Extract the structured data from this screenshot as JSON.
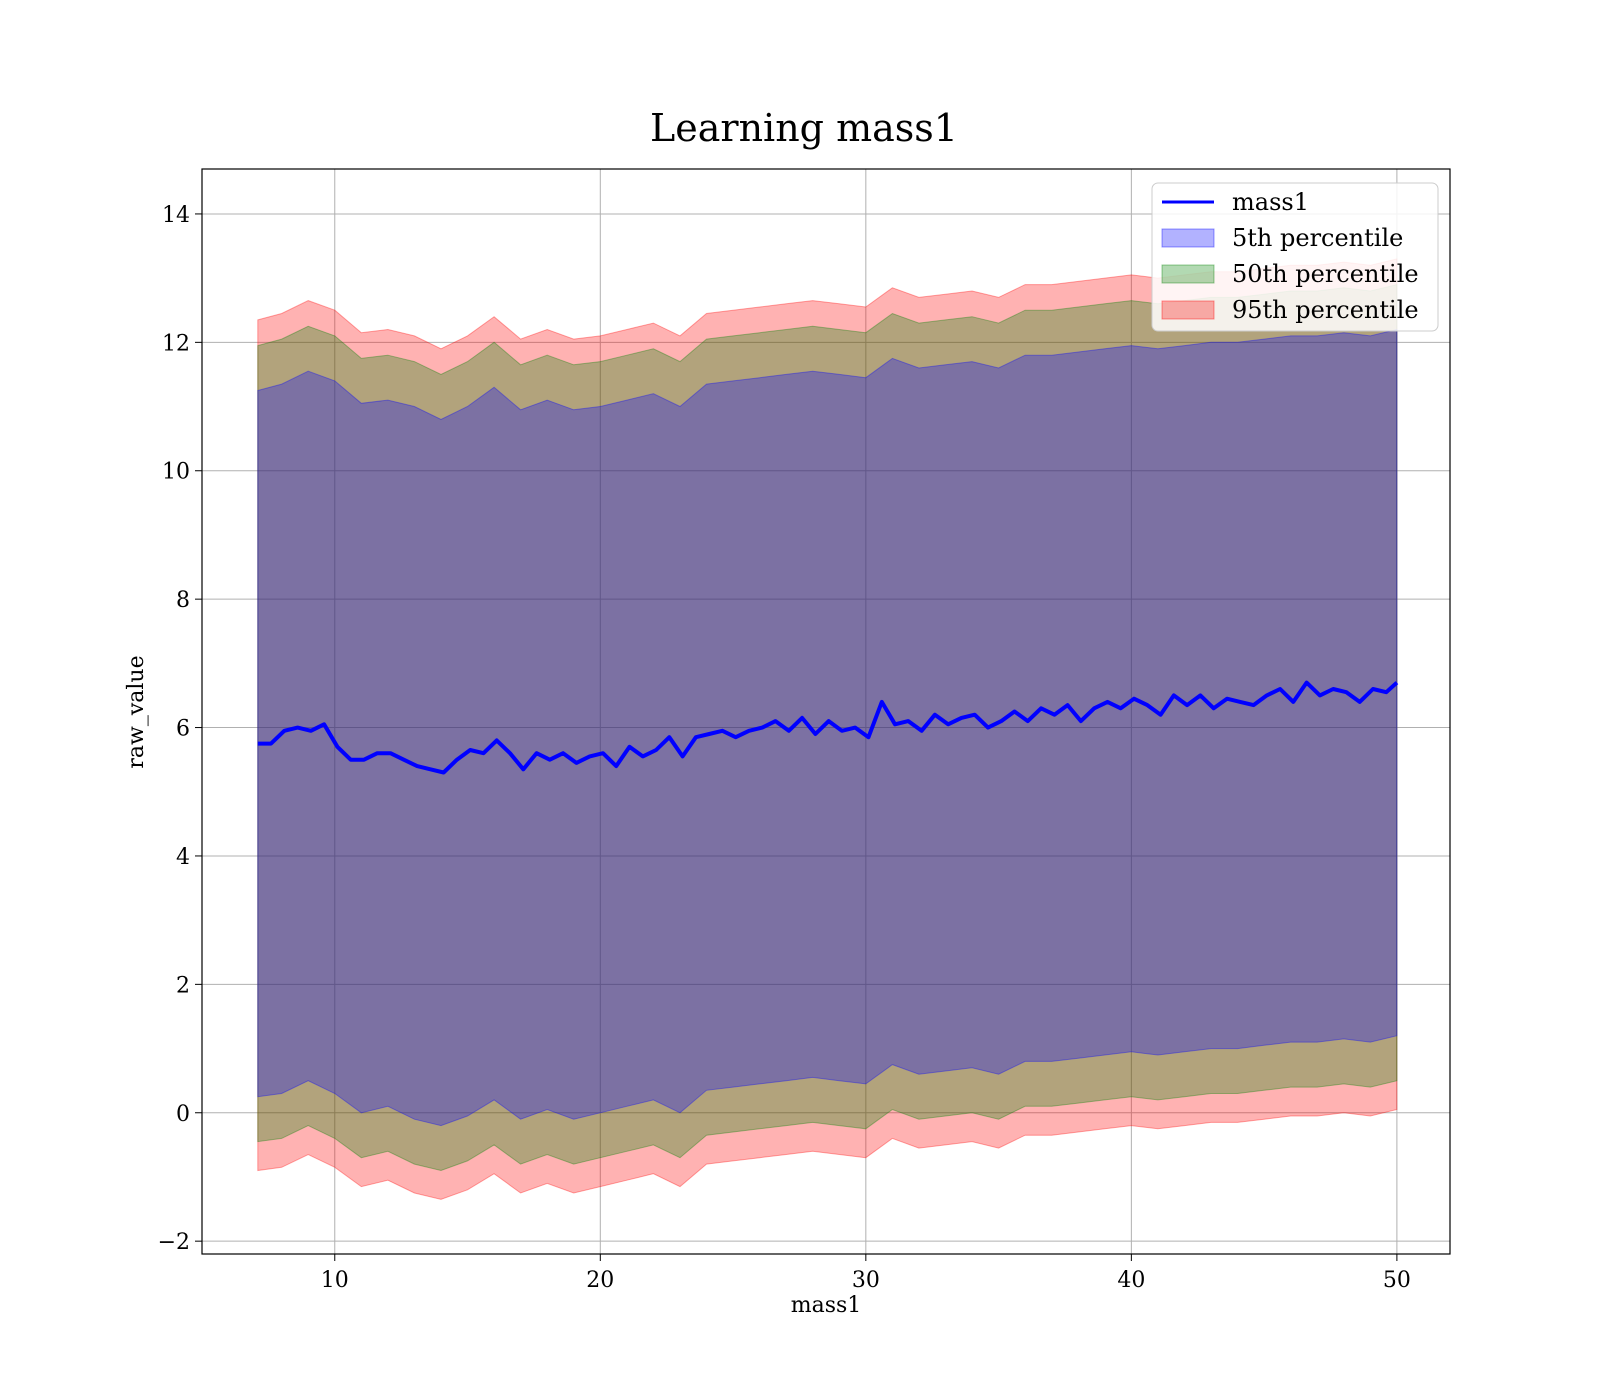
{
  "chart_data": {
    "type": "line",
    "title": "Learning mass1",
    "xlabel": "mass1",
    "ylabel": "raw_value",
    "xlim": [
      5,
      52
    ],
    "ylim": [
      -2.2,
      14.7
    ],
    "xticks": [
      10,
      20,
      30,
      40,
      50
    ],
    "yticks": [
      -2,
      0,
      2,
      4,
      6,
      8,
      10,
      12,
      14
    ],
    "grid": true,
    "legend_position": "top-right",
    "colors": {
      "line": "#0000ff",
      "band_5th": "#0000ff",
      "band_50th": "#008000",
      "band_95th": "#ff0000"
    },
    "legend": [
      {
        "label": "mass1",
        "kind": "line"
      },
      {
        "label": "5th percentile",
        "kind": "band"
      },
      {
        "label": "50th percentile",
        "kind": "band"
      },
      {
        "label": "95th percentile",
        "kind": "band"
      }
    ],
    "series": [
      {
        "name": "mass1",
        "x": [
          7.1,
          7.6,
          8.1,
          8.6,
          9.1,
          9.6,
          10.1,
          10.6,
          11.1,
          11.6,
          12.1,
          12.6,
          13.1,
          13.6,
          14.1,
          14.6,
          15.1,
          15.6,
          16.1,
          16.6,
          17.1,
          17.6,
          18.1,
          18.6,
          19.1,
          19.6,
          20.1,
          20.6,
          21.1,
          21.6,
          22.1,
          22.6,
          23.1,
          23.6,
          24.1,
          24.6,
          25.1,
          25.6,
          26.1,
          26.6,
          27.1,
          27.6,
          28.1,
          28.6,
          29.1,
          29.6,
          30.1,
          30.6,
          31.1,
          31.6,
          32.1,
          32.6,
          33.1,
          33.6,
          34.1,
          34.6,
          35.1,
          35.6,
          36.1,
          36.6,
          37.1,
          37.6,
          38.1,
          38.6,
          39.1,
          39.6,
          40.1,
          40.6,
          41.1,
          41.6,
          42.1,
          42.6,
          43.1,
          43.6,
          44.1,
          44.6,
          45.1,
          45.6,
          46.1,
          46.6,
          47.1,
          47.6,
          48.1,
          48.6,
          49.1,
          49.6,
          50.0
        ],
        "y": [
          5.75,
          5.75,
          5.95,
          6.0,
          5.95,
          6.05,
          5.7,
          5.5,
          5.5,
          5.6,
          5.6,
          5.5,
          5.4,
          5.35,
          5.3,
          5.5,
          5.65,
          5.6,
          5.8,
          5.6,
          5.35,
          5.6,
          5.5,
          5.6,
          5.45,
          5.55,
          5.6,
          5.4,
          5.7,
          5.55,
          5.65,
          5.85,
          5.55,
          5.85,
          5.9,
          5.95,
          5.85,
          5.95,
          6.0,
          6.1,
          5.95,
          6.15,
          5.9,
          6.1,
          5.95,
          6.0,
          5.85,
          6.4,
          6.05,
          6.1,
          5.95,
          6.2,
          6.05,
          6.15,
          6.2,
          6.0,
          6.1,
          6.25,
          6.1,
          6.3,
          6.2,
          6.35,
          6.1,
          6.3,
          6.4,
          6.3,
          6.45,
          6.35,
          6.2,
          6.5,
          6.35,
          6.5,
          6.3,
          6.45,
          6.4,
          6.35,
          6.5,
          6.6,
          6.4,
          6.7,
          6.5,
          6.6,
          6.55,
          6.4,
          6.6,
          6.55,
          6.7
        ]
      },
      {
        "name": "5th percentile",
        "x": [
          7.1,
          8.0,
          9.0,
          10.0,
          11.0,
          12.0,
          13.0,
          14.0,
          15.0,
          16.0,
          17.0,
          18.0,
          19.0,
          20.0,
          21.0,
          22.0,
          23.0,
          24.0,
          25.0,
          26.0,
          27.0,
          28.0,
          29.0,
          30.0,
          31.0,
          32.0,
          33.0,
          34.0,
          35.0,
          36.0,
          37.0,
          38.0,
          39.0,
          40.0,
          41.0,
          42.0,
          43.0,
          44.0,
          45.0,
          46.0,
          47.0,
          48.0,
          49.0,
          50.0
        ],
        "lower": [
          0.25,
          0.3,
          0.5,
          0.3,
          0.0,
          0.1,
          -0.1,
          -0.2,
          -0.05,
          0.2,
          -0.1,
          0.05,
          -0.1,
          0.0,
          0.1,
          0.2,
          0.0,
          0.35,
          0.4,
          0.45,
          0.5,
          0.55,
          0.5,
          0.45,
          0.75,
          0.6,
          0.65,
          0.7,
          0.6,
          0.8,
          0.8,
          0.85,
          0.9,
          0.95,
          0.9,
          0.95,
          1.0,
          1.0,
          1.05,
          1.1,
          1.1,
          1.15,
          1.1,
          1.2
        ],
        "upper": [
          11.25,
          11.35,
          11.55,
          11.4,
          11.05,
          11.1,
          11.0,
          10.8,
          11.0,
          11.3,
          10.95,
          11.1,
          10.95,
          11.0,
          11.1,
          11.2,
          11.0,
          11.35,
          11.4,
          11.45,
          11.5,
          11.55,
          11.5,
          11.45,
          11.75,
          11.6,
          11.65,
          11.7,
          11.6,
          11.8,
          11.8,
          11.85,
          11.9,
          11.95,
          11.9,
          11.95,
          12.0,
          12.0,
          12.05,
          12.1,
          12.1,
          12.15,
          12.1,
          12.2
        ]
      },
      {
        "name": "50th percentile",
        "x": [
          7.1,
          8.0,
          9.0,
          10.0,
          11.0,
          12.0,
          13.0,
          14.0,
          15.0,
          16.0,
          17.0,
          18.0,
          19.0,
          20.0,
          21.0,
          22.0,
          23.0,
          24.0,
          25.0,
          26.0,
          27.0,
          28.0,
          29.0,
          30.0,
          31.0,
          32.0,
          33.0,
          34.0,
          35.0,
          36.0,
          37.0,
          38.0,
          39.0,
          40.0,
          41.0,
          42.0,
          43.0,
          44.0,
          45.0,
          46.0,
          47.0,
          48.0,
          49.0,
          50.0
        ],
        "lower": [
          -0.45,
          -0.4,
          -0.2,
          -0.4,
          -0.7,
          -0.6,
          -0.8,
          -0.9,
          -0.75,
          -0.5,
          -0.8,
          -0.65,
          -0.8,
          -0.7,
          -0.6,
          -0.5,
          -0.7,
          -0.35,
          -0.3,
          -0.25,
          -0.2,
          -0.15,
          -0.2,
          -0.25,
          0.05,
          -0.1,
          -0.05,
          0.0,
          -0.1,
          0.1,
          0.1,
          0.15,
          0.2,
          0.25,
          0.2,
          0.25,
          0.3,
          0.3,
          0.35,
          0.4,
          0.4,
          0.45,
          0.4,
          0.5
        ],
        "upper": [
          11.95,
          12.05,
          12.25,
          12.1,
          11.75,
          11.8,
          11.7,
          11.5,
          11.7,
          12.0,
          11.65,
          11.8,
          11.65,
          11.7,
          11.8,
          11.9,
          11.7,
          12.05,
          12.1,
          12.15,
          12.2,
          12.25,
          12.2,
          12.15,
          12.45,
          12.3,
          12.35,
          12.4,
          12.3,
          12.5,
          12.5,
          12.55,
          12.6,
          12.65,
          12.6,
          12.65,
          12.7,
          12.7,
          12.75,
          12.8,
          12.8,
          12.85,
          12.8,
          12.9
        ]
      },
      {
        "name": "95th percentile",
        "x": [
          7.1,
          8.0,
          9.0,
          10.0,
          11.0,
          12.0,
          13.0,
          14.0,
          15.0,
          16.0,
          17.0,
          18.0,
          19.0,
          20.0,
          21.0,
          22.0,
          23.0,
          24.0,
          25.0,
          26.0,
          27.0,
          28.0,
          29.0,
          30.0,
          31.0,
          32.0,
          33.0,
          34.0,
          35.0,
          36.0,
          37.0,
          38.0,
          39.0,
          40.0,
          41.0,
          42.0,
          43.0,
          44.0,
          45.0,
          46.0,
          47.0,
          48.0,
          49.0,
          50.0
        ],
        "lower": [
          -0.9,
          -0.85,
          -0.65,
          -0.85,
          -1.15,
          -1.05,
          -1.25,
          -1.35,
          -1.2,
          -0.95,
          -1.25,
          -1.1,
          -1.25,
          -1.15,
          -1.05,
          -0.95,
          -1.15,
          -0.8,
          -0.75,
          -0.7,
          -0.65,
          -0.6,
          -0.65,
          -0.7,
          -0.4,
          -0.55,
          -0.5,
          -0.45,
          -0.55,
          -0.35,
          -0.35,
          -0.3,
          -0.25,
          -0.2,
          -0.25,
          -0.2,
          -0.15,
          -0.15,
          -0.1,
          -0.05,
          -0.05,
          0.0,
          -0.05,
          0.05
        ],
        "upper": [
          12.35,
          12.45,
          12.65,
          12.5,
          12.15,
          12.2,
          12.1,
          11.9,
          12.1,
          12.4,
          12.05,
          12.2,
          12.05,
          12.1,
          12.2,
          12.3,
          12.1,
          12.45,
          12.5,
          12.55,
          12.6,
          12.65,
          12.6,
          12.55,
          12.85,
          12.7,
          12.75,
          12.8,
          12.7,
          12.9,
          12.9,
          12.95,
          13.0,
          13.05,
          13.0,
          13.05,
          13.1,
          13.1,
          13.15,
          13.2,
          13.2,
          13.25,
          13.2,
          13.3
        ]
      }
    ]
  }
}
